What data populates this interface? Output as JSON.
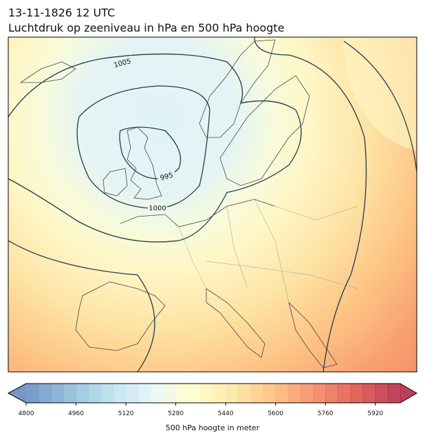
{
  "title": "13-11-1826 12 UTC",
  "subtitle": "Luchtdruk op zeeniveau in hPa en 500 hPa hoogte",
  "contour_labels": [
    "1005",
    "995",
    "1000"
  ],
  "colorbar": {
    "label": "500 hPa hoogte in meter",
    "range": [
      4800,
      6000
    ],
    "ticks": [
      4800,
      4960,
      5120,
      5280,
      5440,
      5600,
      5760,
      5920
    ]
  }
}
